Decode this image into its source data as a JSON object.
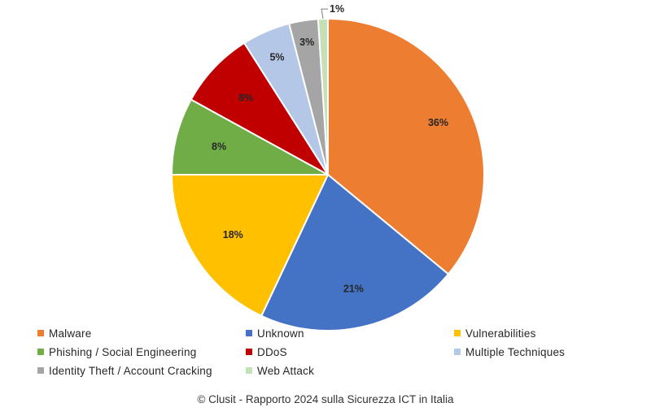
{
  "chart_data": {
    "type": "pie",
    "categories": [
      "Malware",
      "Unknown",
      "Vulnerabilities",
      "Phishing / Social Engineering",
      "DDoS",
      "Multiple Techniques",
      "Identity Theft / Account Cracking",
      "Web Attack"
    ],
    "values": [
      36,
      21,
      18,
      8,
      8,
      5,
      3,
      1
    ],
    "data_labels": [
      "36%",
      "21%",
      "18%",
      "8%",
      "8%",
      "5%",
      "3%",
      "1%"
    ],
    "colors": [
      "#ED7D31",
      "#4472C4",
      "#FFC000",
      "#70AD47",
      "#C00000",
      "#B4C7E7",
      "#A5A5A5",
      "#C5E0B4"
    ],
    "start": "12 o'clock",
    "direction": "clockwise",
    "legend_position": "bottom"
  },
  "footer": "© Clusit - Rapporto 2024 sulla Sicurezza ICT in Italia"
}
